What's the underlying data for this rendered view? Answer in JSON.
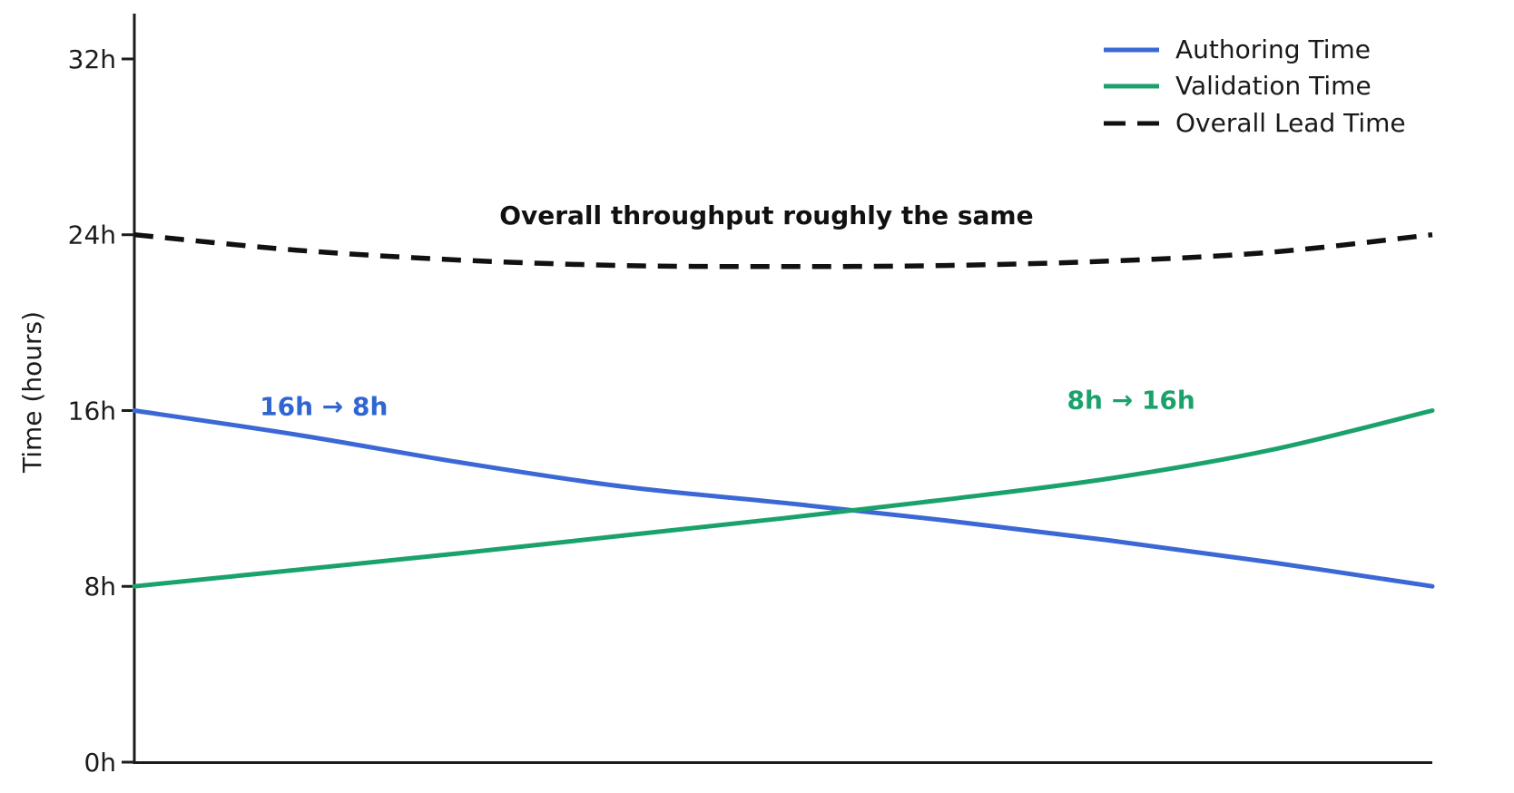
{
  "chart_data": {
    "type": "line",
    "title": "",
    "xlabel": "",
    "ylabel": "Time (hours)",
    "ylim": [
      0,
      34
    ],
    "xticks": [],
    "yticks": [
      {
        "v": 0,
        "label": "0h"
      },
      {
        "v": 8,
        "label": "8h"
      },
      {
        "v": 16,
        "label": "16h"
      },
      {
        "v": 24,
        "label": "24h"
      },
      {
        "v": 32,
        "label": "32h"
      }
    ],
    "x": [
      0,
      0.125,
      0.25,
      0.375,
      0.5,
      0.625,
      0.75,
      0.875,
      1
    ],
    "series": [
      {
        "name": "Authoring Time",
        "color": "#3b68d4",
        "style": "solid",
        "values": [
          16,
          14.9,
          13.65,
          12.55,
          11.8,
          11.0,
          10.1,
          9.1,
          8
        ]
      },
      {
        "name": "Validation Time",
        "color": "#1ba26b",
        "style": "solid",
        "values": [
          8,
          8.75,
          9.5,
          10.3,
          11.1,
          11.95,
          12.9,
          14.2,
          16
        ]
      },
      {
        "name": "Overall Lead Time",
        "color": "#111111",
        "style": "dashed",
        "values": [
          24,
          23.3,
          22.85,
          22.6,
          22.55,
          22.6,
          22.8,
          23.2,
          24
        ]
      }
    ],
    "legend_position": "upper right",
    "annotations": [
      {
        "text": "Overall throughput roughly the same",
        "color": "#111111",
        "t": 0.487,
        "hours": 24.9
      },
      {
        "text": "16h → 8h",
        "color": "#2f66d0",
        "t": 0.146,
        "hours": 16.2
      },
      {
        "text": "8h → 16h",
        "color": "#1ba26b",
        "t": 0.768,
        "hours": 16.5
      }
    ]
  }
}
